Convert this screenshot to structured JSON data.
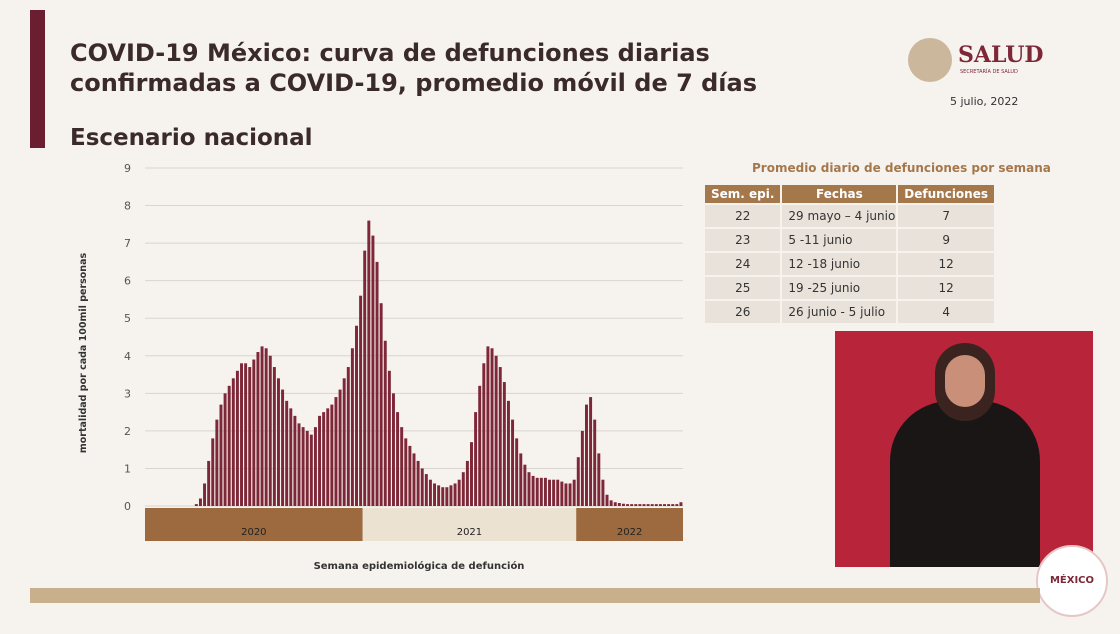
{
  "header": {
    "title_lines": [
      "COVID-19 México: curva de defunciones diarias",
      "confirmadas a COVID-19, promedio móvil de 7 días"
    ],
    "subtitle": "Escenario nacional",
    "logo": "SALUD",
    "logo_sub": "SECRETARÍA DE SALUD",
    "date": "5 julio, 2022"
  },
  "table": {
    "title": "Promedio diario de defunciones por semana",
    "columns": [
      "Sem. epi.",
      "Fechas",
      "Defunciones"
    ],
    "rows": [
      [
        "22",
        "29 mayo – 4 junio",
        "7"
      ],
      [
        "23",
        "5 -11 junio",
        "9"
      ],
      [
        "24",
        "12 -18 junio",
        "12"
      ],
      [
        "25",
        "19 -25 junio",
        "12"
      ],
      [
        "26",
        "26 junio - 5 julio",
        "4"
      ]
    ]
  },
  "footer": {
    "badge": "MÉXICO"
  },
  "chart_data": {
    "type": "bar",
    "color": "#7d2738",
    "ylabel": "mortalidad por cada 100mil personas",
    "xlabel": "Semana epidemiológica de defunción",
    "ylim": [
      0,
      9
    ],
    "yticks": [
      0,
      1,
      2,
      3,
      4,
      5,
      6,
      7,
      8,
      9
    ],
    "grid": true,
    "year_groups": [
      {
        "label": "2020",
        "span": 53,
        "color": "#9c6a3e"
      },
      {
        "label": "2021",
        "span": 52,
        "color": "#ece2d2"
      },
      {
        "label": "2022",
        "span": 26,
        "color": "#9c6a3e"
      }
    ],
    "categories": [
      null,
      null,
      null,
      null,
      null,
      null,
      null,
      null,
      null,
      null,
      null,
      null,
      null,
      null,
      null,
      null,
      null,
      null,
      null,
      null,
      null,
      null,
      null,
      null,
      null,
      null,
      null,
      null,
      null,
      null,
      null,
      null,
      null,
      null,
      null,
      null,
      null,
      null,
      null,
      null,
      null,
      null,
      null,
      null,
      null,
      null,
      null,
      null,
      null,
      null,
      null,
      null,
      null,
      null,
      null,
      null,
      null,
      null,
      null,
      null,
      null,
      null,
      null,
      null,
      null,
      null,
      null,
      null,
      null,
      null,
      null,
      null,
      null,
      null,
      null,
      null,
      null,
      null,
      null,
      null,
      null,
      null,
      null,
      null,
      null,
      null,
      null,
      null,
      null,
      null,
      null,
      null,
      null,
      null,
      null,
      null,
      null,
      null,
      null,
      null,
      null,
      null,
      null,
      null,
      null,
      null,
      null,
      null,
      null,
      null,
      null,
      null,
      null,
      null,
      null,
      null,
      null,
      null,
      null,
      null,
      null,
      null,
      null,
      null,
      null,
      null,
      null,
      null,
      null,
      null,
      null
    ],
    "values": [
      0,
      0,
      0,
      0,
      0,
      0,
      0,
      0,
      0,
      0,
      0,
      0,
      0.05,
      0.2,
      0.6,
      1.2,
      1.8,
      2.3,
      2.7,
      3.0,
      3.2,
      3.4,
      3.6,
      3.8,
      3.8,
      3.7,
      3.9,
      4.1,
      4.25,
      4.2,
      4.0,
      3.7,
      3.4,
      3.1,
      2.8,
      2.6,
      2.4,
      2.2,
      2.1,
      2.0,
      1.9,
      2.1,
      2.4,
      2.5,
      2.6,
      2.7,
      2.9,
      3.1,
      3.4,
      3.7,
      4.2,
      4.8,
      5.6,
      6.8,
      7.6,
      7.2,
      6.5,
      5.4,
      4.4,
      3.6,
      3.0,
      2.5,
      2.1,
      1.8,
      1.6,
      1.4,
      1.2,
      1.0,
      0.85,
      0.7,
      0.6,
      0.55,
      0.5,
      0.5,
      0.55,
      0.6,
      0.7,
      0.9,
      1.2,
      1.7,
      2.5,
      3.2,
      3.8,
      4.25,
      4.2,
      4.0,
      3.7,
      3.3,
      2.8,
      2.3,
      1.8,
      1.4,
      1.1,
      0.9,
      0.8,
      0.75,
      0.75,
      0.75,
      0.7,
      0.7,
      0.7,
      0.65,
      0.6,
      0.6,
      0.7,
      1.3,
      2.0,
      2.7,
      2.9,
      2.3,
      1.4,
      0.7,
      0.3,
      0.15,
      0.1,
      0.08,
      0.06,
      0.05,
      0.05,
      0.05,
      0.05,
      0.05,
      0.05,
      0.05,
      0.05,
      0.05,
      0.05,
      0.05,
      0.05,
      0.05,
      0.1
    ]
  }
}
